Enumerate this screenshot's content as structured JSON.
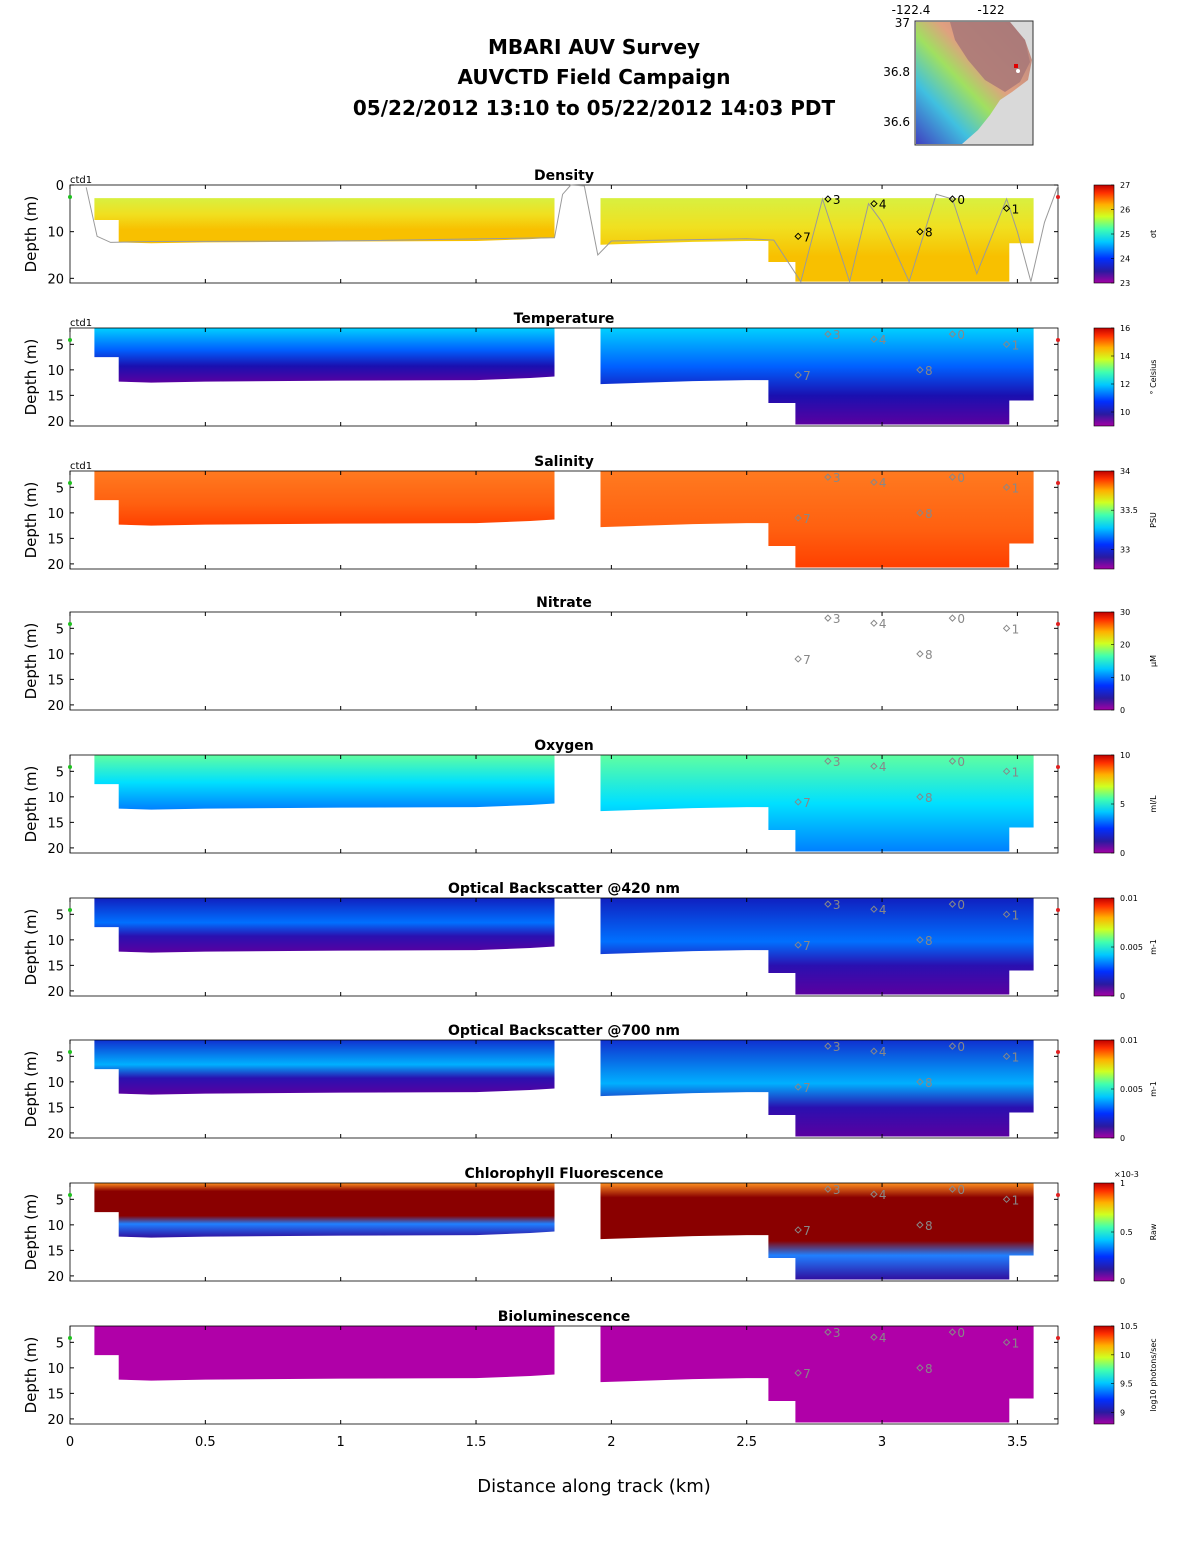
{
  "title": {
    "line1": "MBARI AUV Survey",
    "line2": "AUVCTD Field Campaign",
    "line3": "05/22/2012 13:10  to 05/22/2012 14:03 PDT"
  },
  "map": {
    "lon_ticks": [
      "-122.4",
      "-122"
    ],
    "lat_ticks": [
      "37",
      "36.8",
      "36.6"
    ]
  },
  "chart_data": [
    {
      "type": "heatmap",
      "title": "Density",
      "ylabel": "Depth (m)",
      "yticks": [
        0,
        10,
        20
      ],
      "ylim": [
        21,
        0
      ],
      "xlim": [
        0,
        3.65
      ],
      "colorbar_ticks": [
        23,
        24,
        25,
        26,
        27
      ],
      "colorbar_label": "σt",
      "platform_label": "ctd1",
      "colormap": "jet"
    },
    {
      "type": "heatmap",
      "title": "Temperature",
      "ylabel": "Depth (m)",
      "yticks": [
        5,
        10,
        15,
        20
      ],
      "ylim": [
        21,
        1.8
      ],
      "xlim": [
        0,
        3.65
      ],
      "colorbar_ticks": [
        10,
        12,
        14,
        16
      ],
      "colorbar_range": [
        9,
        16
      ],
      "colorbar_label": "° Celsius",
      "platform_label": "ctd1",
      "colormap": "jet"
    },
    {
      "type": "heatmap",
      "title": "Salinity",
      "ylabel": "Depth (m)",
      "yticks": [
        5,
        10,
        15,
        20
      ],
      "ylim": [
        21,
        1.8
      ],
      "xlim": [
        0,
        3.65
      ],
      "colorbar_ticks": [
        33,
        33.5,
        34
      ],
      "colorbar_range": [
        32.75,
        34
      ],
      "colorbar_label": "PSU",
      "platform_label": "ctd1",
      "colormap": "jet"
    },
    {
      "type": "heatmap",
      "title": "Nitrate",
      "ylabel": "Depth (m)",
      "yticks": [
        5,
        10,
        15,
        20
      ],
      "ylim": [
        21,
        1.8
      ],
      "xlim": [
        0,
        3.65
      ],
      "colorbar_ticks": [
        0,
        10,
        20,
        30
      ],
      "colorbar_label": "μM",
      "platform_label": "",
      "colormap": "jet"
    },
    {
      "type": "heatmap",
      "title": "Oxygen",
      "ylabel": "Depth (m)",
      "yticks": [
        5,
        10,
        15,
        20
      ],
      "ylim": [
        21,
        1.8
      ],
      "xlim": [
        0,
        3.65
      ],
      "colorbar_ticks": [
        0,
        5,
        10
      ],
      "colorbar_label": "ml/L",
      "platform_label": "",
      "colormap": "jet"
    },
    {
      "type": "heatmap",
      "title": "Optical Backscatter @420 nm",
      "ylabel": "Depth (m)",
      "yticks": [
        5,
        10,
        15,
        20
      ],
      "ylim": [
        21,
        1.8
      ],
      "xlim": [
        0,
        3.65
      ],
      "colorbar_ticks": [
        0,
        0.005,
        0.01
      ],
      "colorbar_label": "m-1",
      "platform_label": "",
      "colormap": "jet"
    },
    {
      "type": "heatmap",
      "title": "Optical Backscatter @700 nm",
      "ylabel": "Depth (m)",
      "yticks": [
        5,
        10,
        15,
        20
      ],
      "ylim": [
        21,
        1.8
      ],
      "xlim": [
        0,
        3.65
      ],
      "colorbar_ticks": [
        0,
        0.005,
        0.01
      ],
      "colorbar_label": "m-1",
      "platform_label": "",
      "colormap": "jet"
    },
    {
      "type": "heatmap",
      "title": "Chlorophyll Fluorescence",
      "ylabel": "Depth (m)",
      "yticks": [
        5,
        10,
        15,
        20
      ],
      "ylim": [
        21,
        1.8
      ],
      "xlim": [
        0,
        3.65
      ],
      "colorbar_ticks": [
        0,
        0.5,
        1
      ],
      "colorbar_exponent": "×10-3",
      "colorbar_label": "Raw",
      "platform_label": "",
      "colormap": "jet"
    },
    {
      "type": "heatmap",
      "title": "Bioluminescence",
      "ylabel": "Depth (m)",
      "yticks": [
        5,
        10,
        15,
        20
      ],
      "ylim": [
        21,
        1.8
      ],
      "xlim": [
        0,
        3.65
      ],
      "colorbar_ticks": [
        9,
        9.5,
        10,
        10.5
      ],
      "colorbar_range": [
        8.8,
        10.5
      ],
      "colorbar_label": "log10 photons/sec",
      "platform_label": "",
      "colormap": "jet"
    }
  ],
  "x_axis": {
    "label": "Distance along track (km)",
    "ticks": [
      0,
      0.5,
      1,
      1.5,
      2,
      2.5,
      3,
      3.5
    ]
  },
  "stations": [
    {
      "label": "3",
      "x": 2.8,
      "depth": 3
    },
    {
      "label": "4",
      "x": 2.97,
      "depth": 4
    },
    {
      "label": "0",
      "x": 3.26,
      "depth": 3
    },
    {
      "label": "1",
      "x": 3.46,
      "depth": 5
    },
    {
      "label": "7",
      "x": 2.69,
      "depth": 11
    },
    {
      "label": "8",
      "x": 3.14,
      "depth": 10
    }
  ]
}
